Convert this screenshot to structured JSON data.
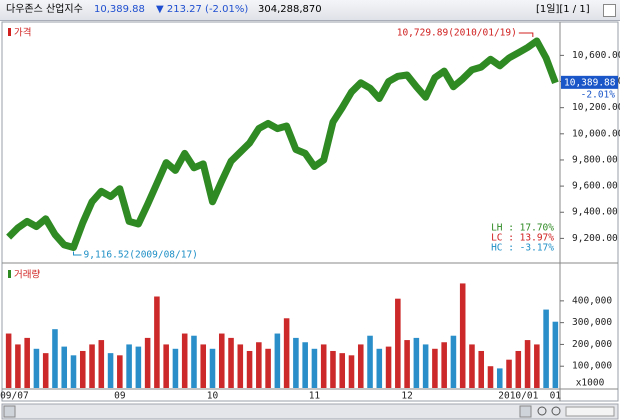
{
  "header": {
    "title": "다우존스 산업지수",
    "price": "10,389.88",
    "change": "▼ 213.27 (-2.01%)",
    "volume": "304,288,870",
    "period": "[1일][1 / 1]"
  },
  "chart_data": [
    {
      "type": "line",
      "legend": "가격",
      "color": "#2f8a24",
      "legend_color": "#d02020",
      "categories": [
        "2009/07",
        null,
        null,
        null,
        null,
        null,
        null,
        null,
        null,
        null,
        null,
        null,
        "09",
        null,
        null,
        null,
        null,
        null,
        null,
        null,
        null,
        null,
        "10",
        null,
        null,
        null,
        null,
        null,
        null,
        null,
        null,
        null,
        null,
        "11",
        null,
        null,
        null,
        null,
        null,
        null,
        null,
        null,
        null,
        "12",
        null,
        null,
        null,
        null,
        null,
        null,
        null,
        null,
        null,
        null,
        null,
        "2010/01",
        null,
        null,
        null,
        "01"
      ],
      "values": [
        9210,
        9280,
        9330,
        9290,
        9350,
        9230,
        9150,
        9130,
        9320,
        9480,
        9560,
        9520,
        9580,
        9330,
        9310,
        9460,
        9620,
        9780,
        9720,
        9850,
        9740,
        9770,
        9480,
        9640,
        9790,
        9860,
        9930,
        10040,
        10080,
        10040,
        10060,
        9880,
        9850,
        9750,
        9800,
        10090,
        10200,
        10320,
        10390,
        10350,
        10270,
        10400,
        10440,
        10450,
        10360,
        10280,
        10430,
        10480,
        10360,
        10420,
        10490,
        10510,
        10570,
        10520,
        10580,
        10620,
        10660,
        10710,
        10580,
        10389.88
      ],
      "ylim": [
        9050,
        10840
      ],
      "yticks": [
        {
          "value": 9200,
          "label": "9,200.00"
        },
        {
          "value": 9400,
          "label": "9,400.00"
        },
        {
          "value": 9600,
          "label": "9,600.00"
        },
        {
          "value": 9800,
          "label": "9,800.00"
        },
        {
          "value": 10000,
          "label": "10,000.00"
        },
        {
          "value": 10200,
          "label": "10,200.00"
        },
        {
          "value": 10400,
          "label": "10,400.00"
        },
        {
          "value": 10600,
          "label": "10,600.00"
        }
      ],
      "last_label": "10,389.88",
      "last_change": "-2.01%",
      "high_label": "10,729.89(2010/01/19)",
      "high_color": "#d02020",
      "low_label": "9,116.52(2009/08/17)",
      "low_color": "#1e8fc6",
      "stats": [
        {
          "text": "LH : 17.70%",
          "color": "#2f8a24"
        },
        {
          "text": "LC : 13.97%",
          "color": "#d02020"
        },
        {
          "text": "HC : -3.17%",
          "color": "#1e8fc6"
        }
      ]
    },
    {
      "type": "bar",
      "legend": "거래량",
      "legend_color": "#2f8a24",
      "up_color": "#cc2a2a",
      "down_color": "#2a8fc8",
      "values": [
        250000,
        200000,
        230000,
        180000,
        160000,
        270000,
        190000,
        150000,
        170000,
        200000,
        220000,
        160000,
        150000,
        200000,
        190000,
        230000,
        420000,
        200000,
        180000,
        250000,
        240000,
        200000,
        180000,
        250000,
        230000,
        200000,
        170000,
        210000,
        180000,
        250000,
        320000,
        230000,
        210000,
        180000,
        200000,
        170000,
        160000,
        150000,
        200000,
        240000,
        180000,
        190000,
        410000,
        220000,
        230000,
        200000,
        180000,
        210000,
        240000,
        480000,
        200000,
        170000,
        100000,
        90000,
        130000,
        170000,
        220000,
        200000,
        360000,
        304289
      ],
      "ylim": [
        0,
        560000
      ],
      "yticks": [
        {
          "value": 100000,
          "label": "100,000"
        },
        {
          "value": 200000,
          "label": "200,000"
        },
        {
          "value": 300000,
          "label": "300,000"
        },
        {
          "value": 400000,
          "label": "400,000"
        }
      ],
      "unit": "x1000"
    }
  ]
}
